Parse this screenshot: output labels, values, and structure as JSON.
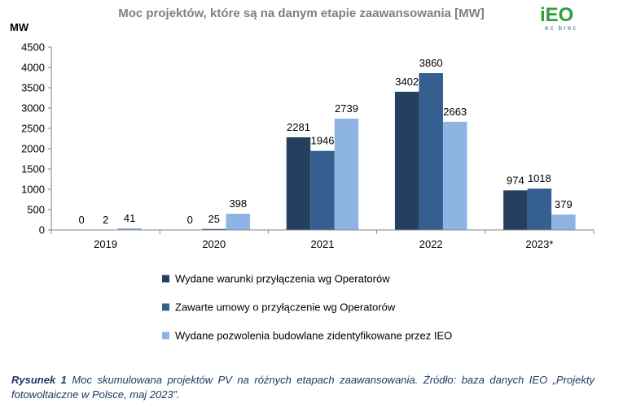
{
  "chart_data": {
    "type": "bar",
    "title": "Moc projektów, które są na danym etapie zaawansowania [MW]",
    "ylabel": "MW",
    "xlabel": "",
    "categories": [
      "2019",
      "2020",
      "2021",
      "2022",
      "2023*"
    ],
    "ylim": [
      0,
      4500
    ],
    "yticks": [
      0,
      500,
      1000,
      1500,
      2000,
      2500,
      3000,
      3500,
      4000,
      4500
    ],
    "series": [
      {
        "name": "Wydane warunki przyłączenia wg Operatorów",
        "color": "#243f60",
        "values": [
          0,
          0,
          2281,
          3402,
          974
        ]
      },
      {
        "name": "Zawarte umowy o przyłączenie wg Operatorów",
        "color": "#365f91",
        "values": [
          2,
          25,
          1946,
          3860,
          1018
        ]
      },
      {
        "name": "Wydane pozwolenia budowlane zidentyfikowane przez IEO",
        "color": "#8eb4e3",
        "values": [
          41,
          398,
          2739,
          2663,
          379
        ]
      }
    ],
    "grid": false,
    "legend_position": "bottom"
  },
  "logo": {
    "text": "iEO",
    "subtitle": "ec brec",
    "color": "#2e9e3e"
  },
  "caption": {
    "label": "Rysunek 1",
    "text": "Moc skumulowana projektów PV na różnych etapach zaawansowania. Źródło: baza danych IEO „Projekty fotowoltaiczne w Polsce, maj 2023”."
  }
}
